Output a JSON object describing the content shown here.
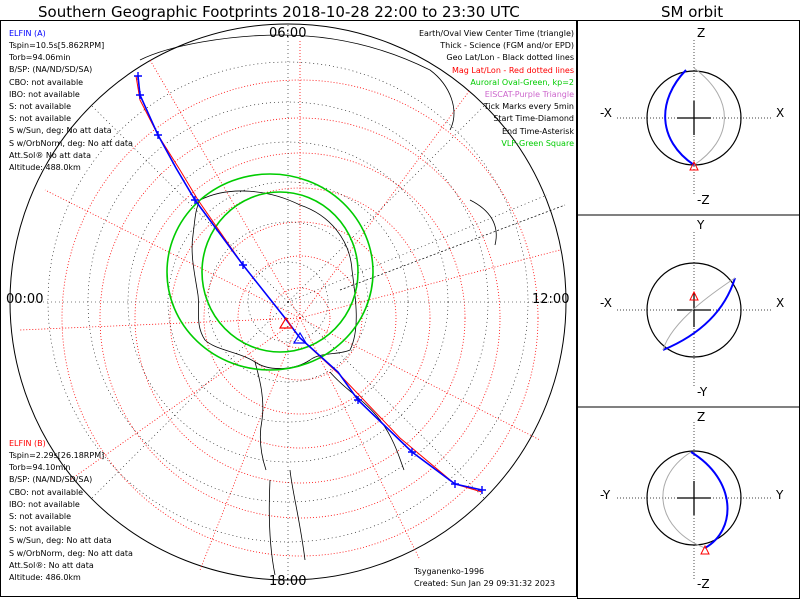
{
  "titles": {
    "main": "Southern Geographic Footprints 2018-10-28 22:00 to 23:30 UTC",
    "orbit": "SM orbit"
  },
  "hours": {
    "top": "06:00",
    "left": "00:00",
    "right": "12:00",
    "bottom": "18:00"
  },
  "elfin_a": {
    "header": "ELFIN (A)",
    "lines": [
      "Tspin=10.5s[5.862RPM]",
      "Torb=94.06min",
      "B/SP: (NA/ND/SD/SA)",
      "CBO: not available",
      "IBO: not available",
      "S: not available",
      "S: not available",
      "S w/Sun, deg: No att data",
      "S w/OrbNorm, deg: No att data",
      "Att.Sol® No att data",
      "Altitude: 488.0km"
    ]
  },
  "elfin_b": {
    "header": "ELFIN (B)",
    "lines": [
      "Tspin=2.29s[26.18RPM]",
      "Torb=94.10min",
      "B/SP: (NA/ND/SD/SA)",
      "CBO: not available",
      "IBO: not available",
      "S: not available",
      "S: not available",
      "S w/Sun, deg: No att data",
      "S w/OrbNorm, deg: No att data",
      "Att.Sol®: No att data",
      "Altitude: 486.0km"
    ]
  },
  "legend": [
    {
      "text": "Earth/Oval View Center Time (triangle)",
      "color": "#000000"
    },
    {
      "text": "Thick - Science (FGM and/or EPD)",
      "color": "#000000"
    },
    {
      "text": "Geo Lat/Lon - Black dotted lines",
      "color": "#000000"
    },
    {
      "text": "Mag Lat/Lon - Red dotted lines",
      "color": "#ff0000"
    },
    {
      "text": "Auroral Oval-Green, kp=2",
      "color": "#00cc00"
    },
    {
      "text": "EISCAT-Purple Triangle",
      "color": "#cc66cc"
    },
    {
      "text": "Tick Marks every 5min",
      "color": "#000000"
    },
    {
      "text": "Start Time-Diamond",
      "color": "#000000"
    },
    {
      "text": "End Time-Asterisk",
      "color": "#000000"
    },
    {
      "text": "VLF-Green Square",
      "color": "#00cc00"
    }
  ],
  "footer": {
    "model": "Tsyganenko-1996",
    "created": "Created: Sun Jan 29 09:31:32 2023"
  },
  "orbit_panels": [
    {
      "top": "Z",
      "bottom": "-Z",
      "left": "-X",
      "right": "X"
    },
    {
      "top": "Y",
      "bottom": "-Y",
      "left": "-X",
      "right": "X"
    },
    {
      "top": "Z",
      "bottom": "-Z",
      "left": "-Y",
      "right": "Y"
    }
  ],
  "colors": {
    "elfin_a": "#0000ff",
    "elfin_b": "#ff0000",
    "oval": "#00cc00",
    "grid_mag": "#ff0000",
    "grid_geo": "#000000"
  }
}
